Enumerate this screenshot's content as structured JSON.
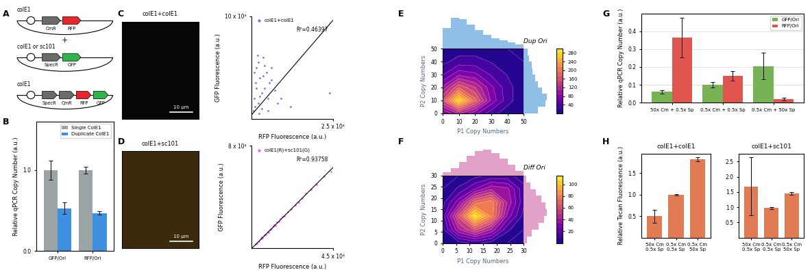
{
  "panel_labels": [
    "A",
    "B",
    "C",
    "D",
    "E",
    "F",
    "G",
    "H"
  ],
  "diagram": {
    "plus": "+",
    "constructs": [
      {
        "ori": "colE1",
        "genes": [
          {
            "name": "CmR",
            "color": "#6b6b6b"
          },
          {
            "name": "RFP",
            "color": "#e8262b"
          }
        ]
      },
      {
        "ori": "colE1 or sc101",
        "genes": [
          {
            "name": "SpecR",
            "color": "#6b6b6b"
          },
          {
            "name": "GFP",
            "color": "#2fb34a"
          }
        ]
      },
      {
        "ori": "colE1",
        "genes": [
          {
            "name": "SpecR",
            "color": "#6b6b6b"
          },
          {
            "name": "CmR",
            "color": "#6b6b6b"
          },
          {
            "name": "RFP",
            "color": "#e8262b"
          },
          {
            "name": "GFP",
            "color": "#2fb34a"
          }
        ]
      }
    ]
  },
  "images": [
    {
      "title": "colE1+colE1",
      "scale_bar": "10 μm",
      "color": "#060606"
    },
    {
      "title": "colE1+sc101",
      "scale_bar": "10 μm",
      "color": "#3b2a0c"
    }
  ],
  "chart_data": [
    {
      "type": "bar",
      "y_label": "Relative qPCR Copy Number (a.u.)",
      "categories": [
        "GFP/Ori",
        "RFP/Ori"
      ],
      "series": [
        {
          "name": "Single ColE1",
          "color": "#9aa3a6",
          "values": [
            1.0,
            1.0
          ],
          "error": [
            0.12,
            0.04
          ]
        },
        {
          "name": "Duplicate ColE1",
          "color": "#3d8fe0",
          "values": [
            0.53,
            0.47
          ],
          "error": [
            0.07,
            0.02
          ]
        }
      ],
      "ylim": [
        0,
        1.6
      ],
      "yticks": [
        {
          "value": 0,
          "label": "0.0"
        },
        {
          "value": 1,
          "label": "1.0"
        }
      ],
      "legend": "upper right"
    },
    {
      "type": "scatter",
      "x_label": "RFP Fluorescence (a.u.)",
      "y_label": "GFP Fluorescence (a.u.)",
      "annotation": "R²=0.46397",
      "series": [
        {
          "name": "colE1+colE1",
          "color": "#2a3cf0",
          "x": [
            500,
            800,
            1200,
            1500,
            2000,
            2500,
            3000,
            3500,
            4000,
            4500,
            5000,
            5500,
            6000,
            7000,
            8000,
            1000,
            2000,
            3000,
            1500,
            2500,
            4000,
            6000,
            9000,
            12000,
            700,
            3500,
            5000,
            1800,
            2200,
            24000
          ],
          "y": [
            8000,
            20000,
            35000,
            50000,
            15000,
            40000,
            25000,
            60000,
            30000,
            45000,
            20000,
            35000,
            50000,
            28000,
            15000,
            12000,
            55000,
            10000,
            30000,
            22000,
            52000,
            38000,
            20000,
            12000,
            45000,
            42000,
            8000,
            62000,
            5000,
            25000
          ]
        }
      ],
      "fit_line": {
        "x": [
          0,
          25000
        ],
        "y": [
          4000,
          96000
        ]
      },
      "xlim": [
        0,
        25000
      ],
      "ylim": [
        0,
        100000
      ],
      "xticks": [
        {
          "value": 25000,
          "label": "2.5 x 10⁴"
        }
      ],
      "yticks": [
        {
          "value": 100000,
          "label": "10 x 10⁴"
        }
      ],
      "legend": "upper left"
    },
    {
      "type": "scatter",
      "x_label": "RFP Fluorescence (a.u.)",
      "y_label": "GFP Fluorescence (a.u.)",
      "annotation": "R²=0.93758",
      "series": [
        {
          "name": "colE1(R)+sc101(G)",
          "color": "#f01cf0",
          "x": [
            2000,
            3000,
            4000,
            5000,
            6000,
            7000,
            8000,
            9000,
            10000,
            11000,
            12000,
            13000,
            14000,
            15000,
            16000,
            18000,
            20000,
            22000,
            24000,
            26000,
            28000,
            30000,
            33000,
            36000,
            40000,
            44000,
            5500,
            9500,
            12500,
            17000
          ],
          "y": [
            3500,
            4000,
            5800,
            7500,
            8000,
            10500,
            11000,
            13000,
            14500,
            15000,
            17500,
            18000,
            20500,
            21000,
            23000,
            25000,
            28500,
            30500,
            34000,
            36000,
            39000,
            43000,
            46000,
            50000,
            56000,
            60000,
            8500,
            12500,
            18500,
            24500
          ]
        }
      ],
      "fit_line": {
        "x": [
          0,
          45000
        ],
        "y": [
          0,
          63000
        ]
      },
      "xlim": [
        0,
        45000
      ],
      "ylim": [
        0,
        80000
      ],
      "xticks": [
        {
          "value": 45000,
          "label": "4.5 x 10⁴"
        }
      ],
      "yticks": [
        {
          "value": 80000,
          "label": "8 x 10⁴"
        }
      ],
      "legend": "upper left"
    },
    {
      "type": "contour",
      "title": "Dup Ori",
      "x_label": "P1 Copy Numbers",
      "y_label": "P2 Copy Numbers",
      "x": [
        0,
        10,
        20,
        30,
        40,
        50
      ],
      "y": [
        0,
        10,
        20,
        30,
        40,
        50
      ],
      "z": [
        [
          60,
          110,
          70,
          30,
          10,
          0
        ],
        [
          150,
          280,
          180,
          80,
          30,
          5
        ],
        [
          90,
          170,
          130,
          70,
          30,
          5
        ],
        [
          40,
          80,
          70,
          40,
          20,
          5
        ],
        [
          15,
          30,
          30,
          20,
          10,
          0
        ],
        [
          0,
          10,
          10,
          5,
          0,
          0
        ]
      ],
      "xlim": [
        0,
        50
      ],
      "ylim": [
        0,
        50
      ],
      "xticks": [
        0,
        10,
        20,
        30,
        40,
        50
      ],
      "yticks": [
        0,
        10,
        20,
        30,
        40,
        50
      ],
      "colorbar": {
        "range": [
          0,
          300
        ],
        "ticks": [
          40,
          80,
          120,
          160,
          200,
          240,
          280
        ]
      },
      "top_hist": {
        "bins": [
          0,
          5,
          10,
          15,
          20,
          25,
          30,
          35,
          40,
          45,
          50
        ],
        "counts": [
          60,
          90,
          85,
          70,
          55,
          40,
          30,
          25,
          18,
          12
        ],
        "color": "#8fbfe6",
        "tick_labels": false
      },
      "right_hist": {
        "bins": [
          0,
          5,
          10,
          15,
          20,
          25,
          30,
          35,
          40,
          45,
          50
        ],
        "counts": [
          55,
          85,
          90,
          70,
          55,
          45,
          35,
          30,
          20,
          15
        ],
        "color": "#8fbfe6",
        "tick_labels": false
      }
    },
    {
      "type": "contour",
      "title": "Diff Ori",
      "x_label": "P1 Copy Numbers",
      "y_label": "P2 Copy Numbers",
      "x": [
        0,
        6,
        12,
        18,
        24,
        30
      ],
      "y": [
        0,
        6,
        12,
        18,
        24,
        30
      ],
      "z": [
        [
          0,
          5,
          10,
          5,
          0,
          0
        ],
        [
          5,
          40,
          60,
          40,
          10,
          0
        ],
        [
          10,
          60,
          110,
          80,
          30,
          5
        ],
        [
          5,
          30,
          70,
          80,
          40,
          10
        ],
        [
          0,
          10,
          25,
          40,
          35,
          10
        ],
        [
          0,
          0,
          5,
          10,
          10,
          5
        ]
      ],
      "xlim": [
        0,
        30
      ],
      "ylim": [
        0,
        30
      ],
      "xticks": [
        0,
        5,
        10,
        15,
        20,
        25,
        30
      ],
      "yticks": [
        0,
        5,
        10,
        15,
        20,
        25,
        30
      ],
      "colorbar": {
        "range": [
          0,
          115
        ],
        "ticks": [
          20,
          40,
          60,
          80,
          100
        ]
      },
      "top_hist": {
        "bins": [
          0,
          3,
          6,
          9,
          12,
          15,
          18,
          21,
          24,
          27,
          30
        ],
        "counts": [
          10,
          25,
          45,
          65,
          80,
          85,
          75,
          55,
          35,
          15
        ],
        "color": "#e3a0c8",
        "tick_labels": false
      },
      "right_hist": {
        "bins": [
          0,
          3,
          6,
          9,
          12,
          15,
          18,
          21,
          24,
          27,
          30
        ],
        "counts": [
          12,
          30,
          55,
          75,
          85,
          80,
          65,
          45,
          25,
          10
        ],
        "color": "#e3a0c8",
        "tick_labels": false
      }
    },
    {
      "type": "bar",
      "y_label": "Relative qPCR Copy Number (a.u.)",
      "categories": [
        "50x Cm + 0.5x Sp",
        "0.5x Cm + 0.5x Sp",
        "0.5x Cm + 50x Sp"
      ],
      "series": [
        {
          "name": "GFP/Ori",
          "color": "#77b255",
          "values": [
            0.06,
            0.1,
            0.205
          ],
          "error": [
            0.008,
            0.015,
            0.075
          ]
        },
        {
          "name": "RFP/Ori",
          "color": "#e0554f",
          "values": [
            0.365,
            0.15,
            0.02
          ],
          "error": [
            0.11,
            0.025,
            0.008
          ]
        }
      ],
      "ylim": [
        0,
        0.5
      ],
      "yticks": [
        {
          "value": 0,
          "label": "0.0"
        },
        {
          "value": 0.1,
          "label": "0.1"
        },
        {
          "value": 0.2,
          "label": "0.2"
        },
        {
          "value": 0.3,
          "label": "0.3"
        },
        {
          "value": 0.4,
          "label": "0.4"
        }
      ],
      "legend": "upper right",
      "grid": true
    },
    {
      "type": "bar",
      "title": "colE1+colE1",
      "y_label": "Relative Tecan Fluorescence (a.u.)",
      "categories": [
        "50x Cm\n0.5x Sp",
        "0.5x Cm\n0.5x Sp",
        "0.5x Cm\n50x Sp"
      ],
      "values": [
        0.5,
        1.0,
        1.82
      ],
      "error": [
        0.15,
        0.02,
        0.05
      ],
      "color": "#e07b54",
      "ylim": [
        0,
        1.95
      ],
      "yticks": [
        0.5,
        1.0,
        1.5
      ]
    },
    {
      "type": "bar",
      "title": "colE1+sc101",
      "categories": [
        "50x Cm\n0.5x Sp",
        "0.5x Cm\n0.5x Sp",
        "0.5x Cm\n50x Sp"
      ],
      "values": [
        1.68,
        0.97,
        1.45
      ],
      "error": [
        0.95,
        0.04,
        0.05
      ],
      "color": "#e07b54",
      "ylim": [
        0,
        2.75
      ],
      "yticks": [
        0.5,
        1.0,
        1.5,
        2.0,
        2.5
      ]
    }
  ]
}
